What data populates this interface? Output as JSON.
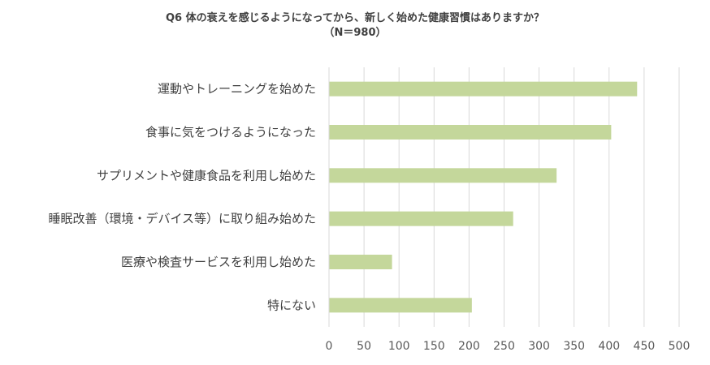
{
  "chart_data": {
    "type": "bar",
    "orientation": "horizontal",
    "title": "Q6 体の衰えを感じるようになってから、新しく始めた健康習慣はありますか？",
    "subtitle": "（N＝980）",
    "categories": [
      "運動やトレーニングを始めた",
      "食事に気をつけるようになった",
      "サプリメントや健康食品を利用し始めた",
      "睡眠改善（環境・デバイス等）に取り組み始めた",
      "医療や検査サービスを利用し始めた",
      "特にない"
    ],
    "values": [
      440,
      403,
      325,
      263,
      90,
      204
    ],
    "xlim": [
      0,
      500
    ],
    "xticks": [
      0,
      50,
      100,
      150,
      200,
      250,
      300,
      350,
      400,
      450,
      500
    ],
    "grid": true,
    "legend": "none",
    "bar_color": "#c4d79b",
    "grid_color": "#d9d9d9"
  }
}
